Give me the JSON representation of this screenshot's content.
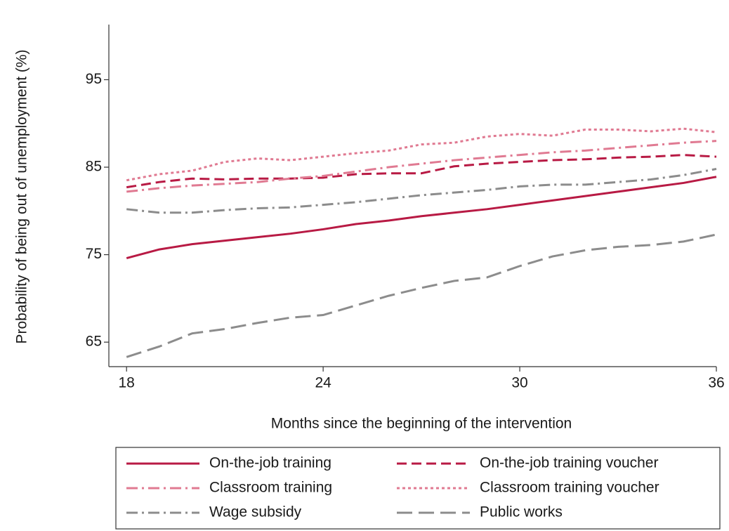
{
  "chart_data": {
    "type": "line",
    "x_label": "Months since the beginning of the intervention",
    "y_label": "Probability of being out of unemployment (%)",
    "x": [
      18,
      19,
      20,
      21,
      22,
      23,
      24,
      25,
      26,
      27,
      28,
      29,
      30,
      31,
      32,
      33,
      34,
      35,
      36
    ],
    "xlim": [
      17.46,
      36
    ],
    "ylim": [
      62.2,
      101.3
    ],
    "xticks": [
      18,
      24,
      30,
      36
    ],
    "yticks": [
      65,
      75,
      85,
      95
    ],
    "grid": false,
    "legend": "bottom",
    "series": [
      {
        "name": "On-the-job training",
        "color": "#b81a44",
        "style": "solid",
        "values": [
          74.6,
          75.6,
          76.2,
          76.6,
          77.0,
          77.4,
          77.9,
          78.5,
          78.9,
          79.4,
          79.8,
          80.2,
          80.7,
          81.2,
          81.7,
          82.2,
          82.7,
          83.2,
          83.9
        ]
      },
      {
        "name": "On-the-job training voucher",
        "color": "#b81a44",
        "style": "dashed",
        "values": [
          82.7,
          83.3,
          83.7,
          83.6,
          83.7,
          83.7,
          83.8,
          84.2,
          84.3,
          84.3,
          85.1,
          85.4,
          85.6,
          85.8,
          85.9,
          86.1,
          86.2,
          86.4,
          86.2
        ]
      },
      {
        "name": "Classroom training",
        "color": "#e07a92",
        "style": "dashdot",
        "values": [
          82.2,
          82.6,
          82.9,
          83.1,
          83.3,
          83.7,
          84.0,
          84.5,
          85.0,
          85.4,
          85.8,
          86.1,
          86.4,
          86.7,
          86.9,
          87.2,
          87.5,
          87.8,
          88.0
        ]
      },
      {
        "name": "Classroom training voucher",
        "color": "#e07a92",
        "style": "dotted",
        "values": [
          83.5,
          84.2,
          84.6,
          85.6,
          86.0,
          85.8,
          86.2,
          86.6,
          86.9,
          87.6,
          87.8,
          88.5,
          88.8,
          88.6,
          89.3,
          89.3,
          89.1,
          89.4,
          89.0
        ]
      },
      {
        "name": "Wage subsidy",
        "color": "#8c8c8c",
        "style": "dashdot",
        "values": [
          80.2,
          79.8,
          79.8,
          80.1,
          80.3,
          80.4,
          80.7,
          81.0,
          81.4,
          81.8,
          82.1,
          82.4,
          82.8,
          83.0,
          83.0,
          83.3,
          83.6,
          84.1,
          84.8
        ]
      },
      {
        "name": "Public works",
        "color": "#8c8c8c",
        "style": "longdash",
        "values": [
          63.3,
          64.5,
          66.0,
          66.5,
          67.2,
          67.8,
          68.1,
          69.2,
          70.3,
          71.2,
          72.0,
          72.4,
          73.7,
          74.8,
          75.5,
          75.9,
          76.1,
          76.5,
          77.3
        ]
      }
    ]
  }
}
